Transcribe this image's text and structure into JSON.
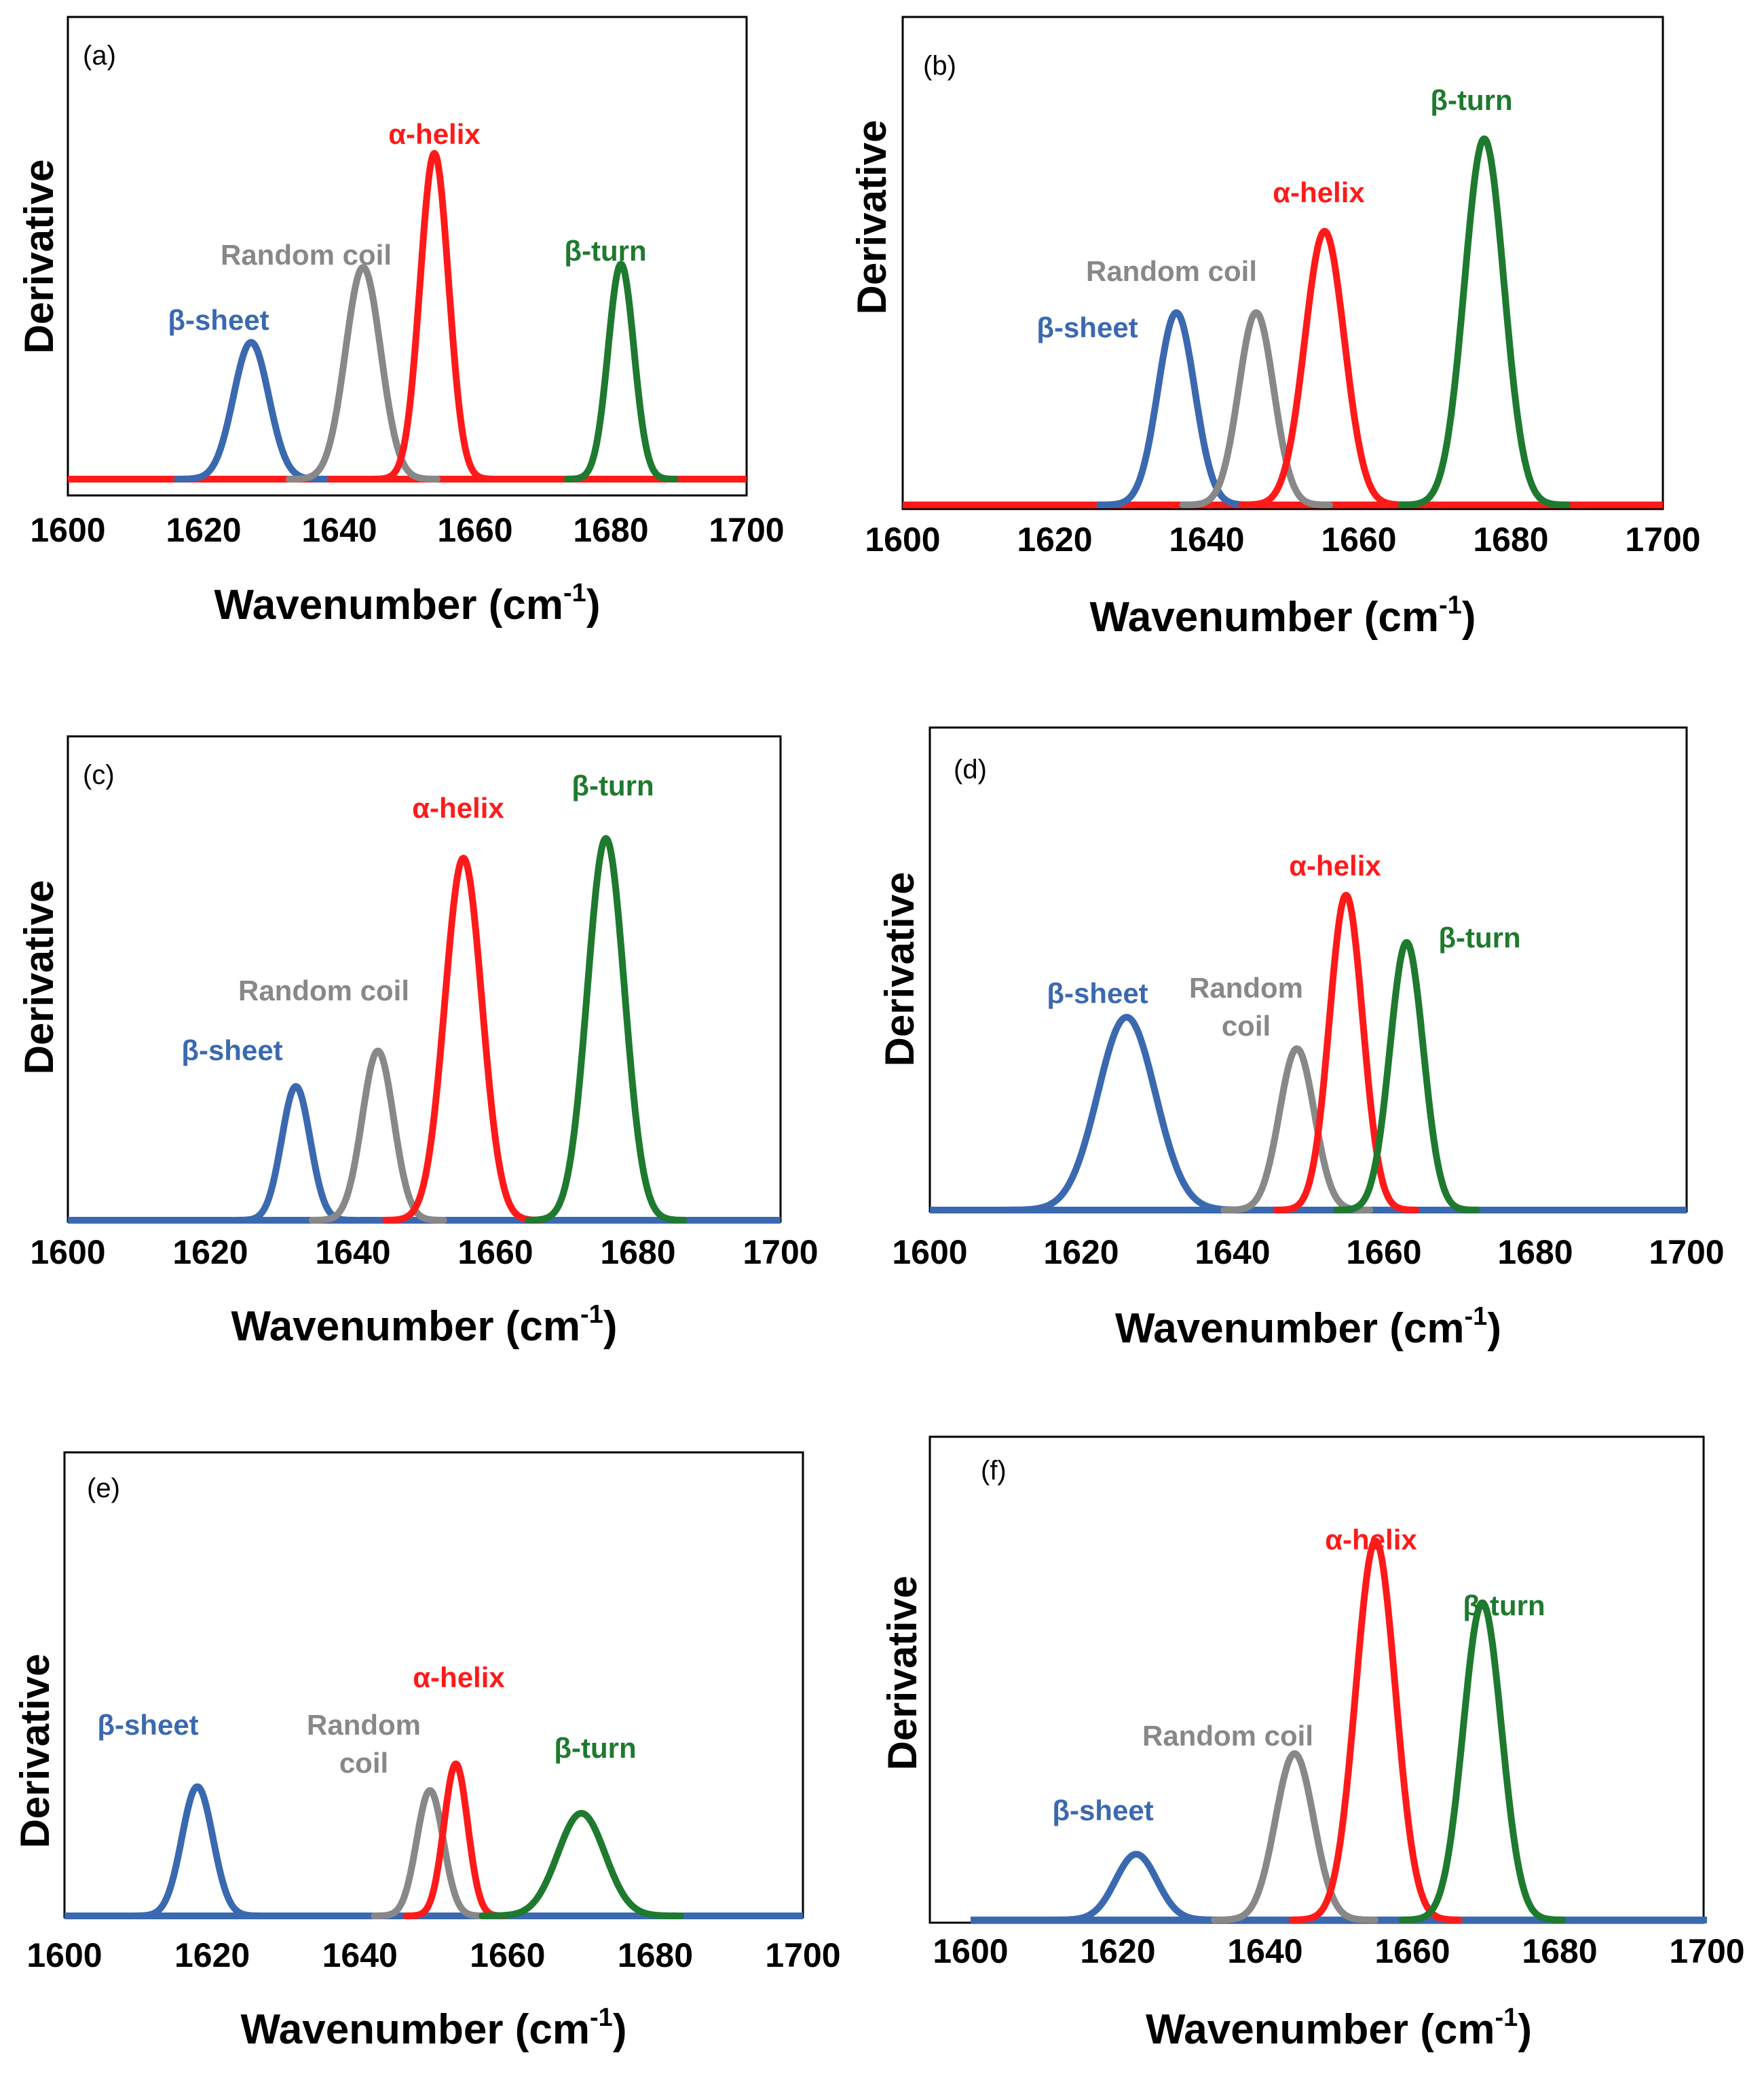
{
  "figure": {
    "panel_count": 6
  },
  "colors": {
    "beta_sheet": "#3b69b0",
    "random_coil": "#888888",
    "alpha_helix": "#ff1a1a",
    "beta_turn": "#1e7a2e",
    "frame": "#000000"
  },
  "chart_data": [
    {
      "type": "line",
      "panel_label": "(a)",
      "xlabel_main": "Wavenumber (cm",
      "xlabel_sup": "-1",
      "xlabel_close": ")",
      "ylabel": "Derivative",
      "xlim": [
        1600,
        1700
      ],
      "ylim": [
        0,
        1
      ],
      "xticks": [
        "1600",
        "1620",
        "1640",
        "1660",
        "1680",
        "1700"
      ],
      "baseline": {
        "color": "#ff1a1a"
      },
      "series": [
        {
          "name": "β-sheet",
          "label": "β-sheet",
          "center": 1627,
          "height": 0.42,
          "width": 2.6,
          "color": "#3b69b0"
        },
        {
          "name": "Random coil",
          "label": "Random coil",
          "center": 1643.5,
          "height": 0.65,
          "width": 2.6,
          "color": "#888888"
        },
        {
          "name": "α-helix",
          "label": "α-helix",
          "center": 1654,
          "height": 1.0,
          "width": 2.1,
          "color": "#ff1a1a"
        },
        {
          "name": "β-turn",
          "label": "β-turn",
          "center": 1681.5,
          "height": 0.66,
          "width": 1.9,
          "color": "#1e7a2e"
        }
      ]
    },
    {
      "type": "line",
      "panel_label": "(b)",
      "xlabel_main": "Wavenumber (cm",
      "xlabel_sup": "-1",
      "xlabel_close": ")",
      "ylabel": "Derivative",
      "xlim": [
        1600,
        1700
      ],
      "ylim": [
        0,
        1
      ],
      "xticks": [
        "1600",
        "1620",
        "1640",
        "1660",
        "1680",
        "1700"
      ],
      "baseline": {
        "color": "#ff1a1a"
      },
      "series": [
        {
          "name": "β-sheet",
          "label": "β-sheet",
          "center": 1636,
          "height": 0.52,
          "width": 2.4,
          "color": "#3b69b0"
        },
        {
          "name": "Random coil",
          "label": "Random coil",
          "center": 1646.5,
          "height": 0.52,
          "width": 2.3,
          "color": "#888888"
        },
        {
          "name": "α-helix",
          "label": "α-helix",
          "center": 1655.5,
          "height": 0.74,
          "width": 2.6,
          "color": "#ff1a1a"
        },
        {
          "name": "β-turn",
          "label": "β-turn",
          "center": 1676.5,
          "height": 0.99,
          "width": 2.6,
          "color": "#1e7a2e"
        }
      ]
    },
    {
      "type": "line",
      "panel_label": "(c)",
      "xlabel_main": "Wavenumber (cm",
      "xlabel_sup": "-1",
      "xlabel_close": ")",
      "ylabel": "Derivative",
      "xlim": [
        1600,
        1700
      ],
      "ylim": [
        0,
        1
      ],
      "xticks": [
        "1600",
        "1620",
        "1640",
        "1660",
        "1680",
        "1700"
      ],
      "baseline": {
        "color": "#3b69b0"
      },
      "series": [
        {
          "name": "β-sheet",
          "label": "β-sheet",
          "center": 1632,
          "height": 0.34,
          "width": 2.0,
          "color": "#3b69b0"
        },
        {
          "name": "Random coil",
          "label": "Random coil",
          "center": 1643.5,
          "height": 0.43,
          "width": 2.2,
          "color": "#888888"
        },
        {
          "name": "α-helix",
          "label": "α-helix",
          "center": 1655.5,
          "height": 0.92,
          "width": 2.6,
          "color": "#ff1a1a"
        },
        {
          "name": "β-turn",
          "label": "β-turn",
          "center": 1675.5,
          "height": 0.97,
          "width": 2.6,
          "color": "#1e7a2e"
        }
      ]
    },
    {
      "type": "line",
      "panel_label": "(d)",
      "xlabel_main": "Wavenumber (cm",
      "xlabel_sup": "-1",
      "xlabel_close": ")",
      "ylabel": "Derivative",
      "xlim": [
        1600,
        1700
      ],
      "ylim": [
        0,
        1
      ],
      "xticks": [
        "1600",
        "1620",
        "1640",
        "1660",
        "1680",
        "1700"
      ],
      "baseline": {
        "color": "#3b69b0"
      },
      "series": [
        {
          "name": "β-sheet",
          "label": "β-sheet",
          "center": 1626,
          "height": 0.49,
          "width": 3.8,
          "color": "#3b69b0"
        },
        {
          "name": "Random coil",
          "label": "Random coil",
          "center": 1648.5,
          "height": 0.41,
          "width": 2.3,
          "color": "#888888"
        },
        {
          "name": "α-helix",
          "label": "α-helix",
          "center": 1655,
          "height": 0.8,
          "width": 2.2,
          "color": "#ff1a1a"
        },
        {
          "name": "β-turn",
          "label": "β-turn",
          "center": 1663,
          "height": 0.68,
          "width": 2.2,
          "color": "#1e7a2e"
        }
      ]
    },
    {
      "type": "line",
      "panel_label": "(e)",
      "xlabel_main": "Wavenumber (cm",
      "xlabel_sup": "-1",
      "xlabel_close": ")",
      "ylabel": "Derivative",
      "xlim": [
        1600,
        1700
      ],
      "ylim": [
        0,
        1
      ],
      "xticks": [
        "1600",
        "1620",
        "1640",
        "1660",
        "1680",
        "1700"
      ],
      "baseline": {
        "color": "#3b69b0"
      },
      "series": [
        {
          "name": "β-sheet",
          "label": "β-sheet",
          "center": 1618,
          "height": 0.34,
          "width": 2.1,
          "color": "#3b69b0"
        },
        {
          "name": "Random coil",
          "label": "Random coil",
          "center": 1649.5,
          "height": 0.33,
          "width": 1.8,
          "color": "#888888"
        },
        {
          "name": "α-helix",
          "label": "α-helix",
          "center": 1653,
          "height": 0.4,
          "width": 1.6,
          "color": "#ff1a1a"
        },
        {
          "name": "β-turn",
          "label": "β-turn",
          "center": 1670,
          "height": 0.27,
          "width": 3.2,
          "color": "#1e7a2e"
        }
      ]
    },
    {
      "type": "line",
      "panel_label": "(f)",
      "xlabel_main": "Wavenumber (cm",
      "xlabel_sup": "-1",
      "xlabel_close": ")",
      "ylabel": "Derivative",
      "xlim": [
        1600,
        1700
      ],
      "ylim": [
        0,
        1
      ],
      "xticks": [
        "1600",
        "1620",
        "1640",
        "1660",
        "1680",
        "1700"
      ],
      "baseline": {
        "color": "#3b69b0"
      },
      "series": [
        {
          "name": "β-sheet",
          "label": "β-sheet",
          "center": 1622.5,
          "height": 0.17,
          "width": 2.8,
          "color": "#3b69b0"
        },
        {
          "name": "Random coil",
          "label": "Random coil",
          "center": 1644,
          "height": 0.43,
          "width": 2.6,
          "color": "#888888"
        },
        {
          "name": "α-helix",
          "label": "α-helix",
          "center": 1655,
          "height": 0.98,
          "width": 2.7,
          "color": "#ff1a1a"
        },
        {
          "name": "β-turn",
          "label": "β-turn",
          "center": 1669.5,
          "height": 0.82,
          "width": 2.6,
          "color": "#1e7a2e"
        }
      ]
    }
  ]
}
